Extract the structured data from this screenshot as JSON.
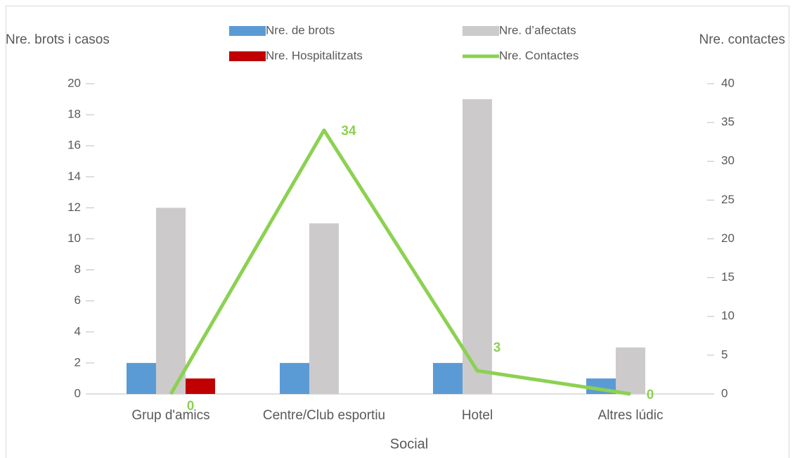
{
  "chart_data": {
    "type": "bar-line",
    "x_label": "Social",
    "y_label": "Nre. brots i casos",
    "y2_label": "Nre. contactes",
    "categories": [
      "Grup d'amics",
      "Centre/Club esportiu",
      "Hotel",
      "Altres lúdic"
    ],
    "series": [
      {
        "name": "Nre. de brots",
        "type": "bar",
        "color": "#5b9bd5",
        "values": [
          2,
          2,
          2,
          1
        ]
      },
      {
        "name": "Nre. d’afectats",
        "type": "bar",
        "color": "#cccacb",
        "values": [
          12,
          11,
          19,
          3
        ]
      },
      {
        "name": "Nre. Hospitalitzats",
        "type": "bar",
        "color": "#c00000",
        "values": [
          1,
          0,
          0,
          0
        ]
      },
      {
        "name": "Nre. Contactes",
        "type": "line",
        "axis": "y2",
        "color": "#8cd152",
        "values": [
          0,
          34,
          3,
          0
        ],
        "show_value_labels": true
      }
    ],
    "ylim": [
      0,
      20
    ],
    "yticks": [
      0,
      2,
      4,
      6,
      8,
      10,
      12,
      14,
      16,
      18,
      20
    ],
    "y2lim": [
      0,
      40
    ],
    "y2ticks": [
      0,
      5,
      10,
      15,
      20,
      25,
      30,
      35,
      40
    ],
    "grid": false,
    "legend": "top"
  }
}
